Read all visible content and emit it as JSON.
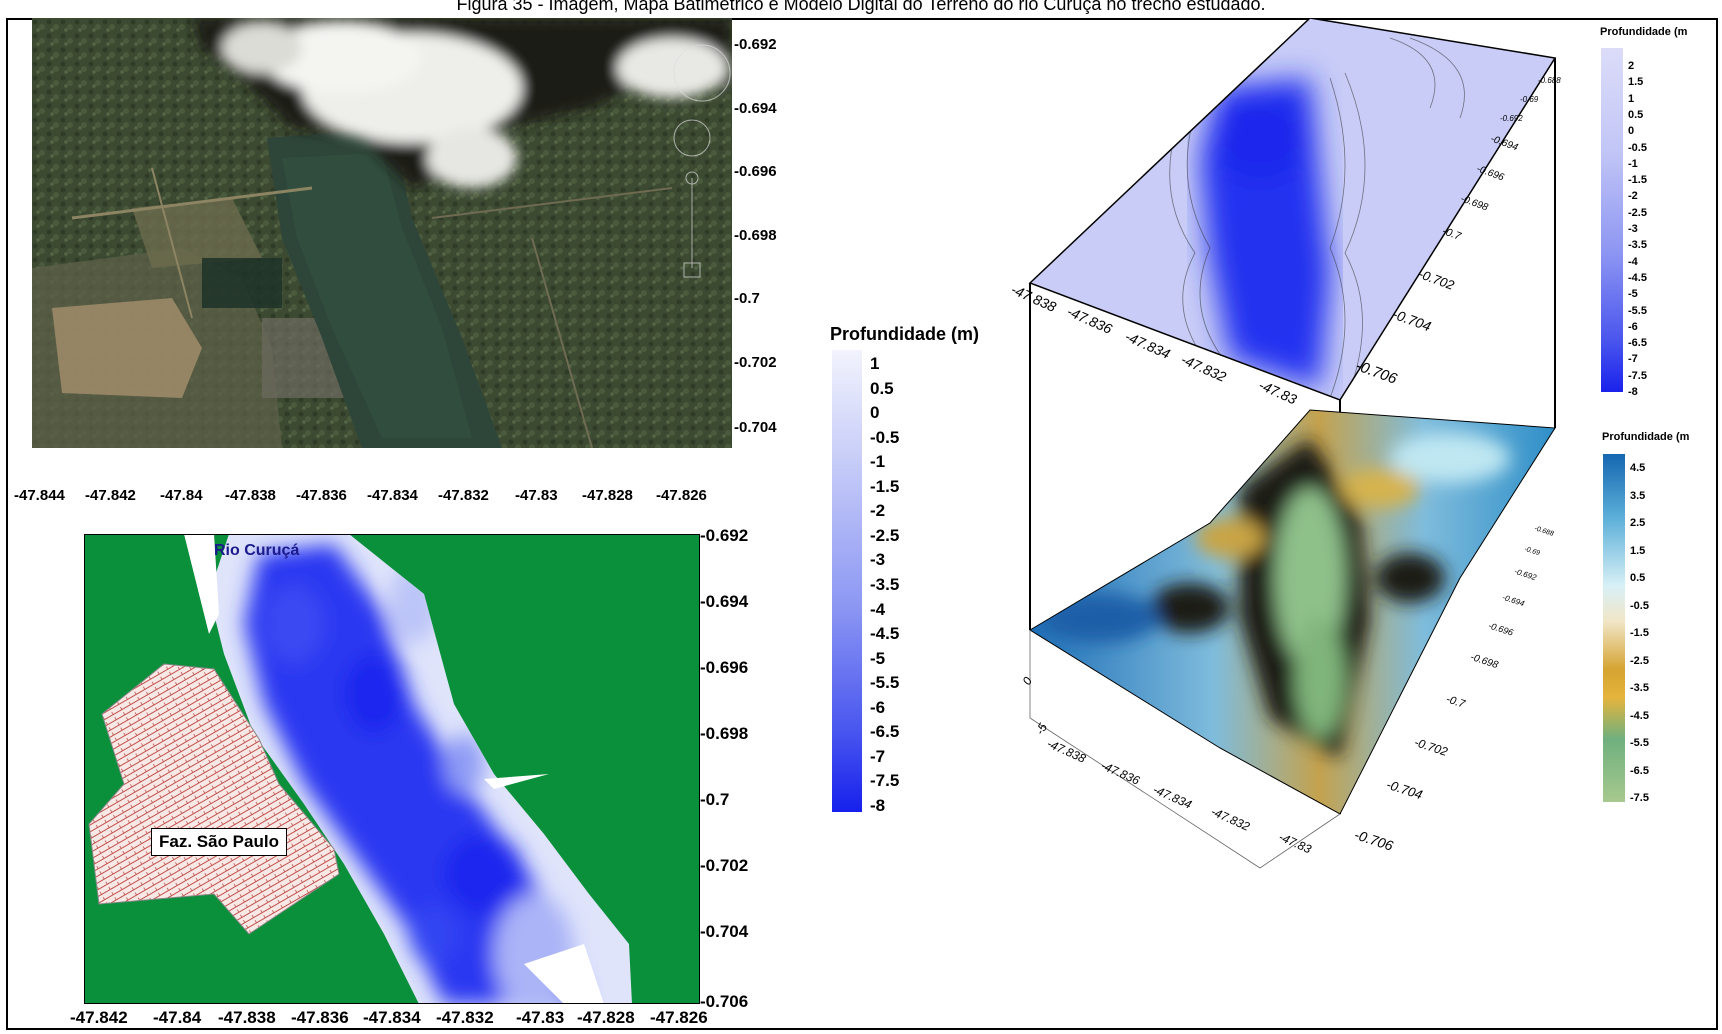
{
  "figure_caption": "Figura 35 - Imagem, Mapa Batimétrico e Modelo Digital do Terreno do rio Curuçá no trecho estudado.",
  "satellite": {
    "y_ticks": [
      "-0.692",
      "-0.694",
      "-0.696",
      "-0.698",
      "-0.7",
      "-0.702",
      "-0.704"
    ],
    "x_ticks": [
      "-47.844",
      "-47.842",
      "-47.84",
      "-47.838",
      "-47.836",
      "-47.834",
      "-47.832",
      "-47.83",
      "-47.828",
      "-47.826"
    ]
  },
  "bathymetric_map": {
    "river_label": "Rio Curuçá",
    "farm_label": "Faz. São Paulo",
    "y_ticks": [
      "-0.692",
      "-0.694",
      "-0.696",
      "-0.698",
      "-0.7",
      "-0.702",
      "-0.704",
      "-0.706"
    ],
    "x_ticks": [
      "-47.842",
      "-47.84",
      "-47.838",
      "-47.836",
      "-47.834",
      "-47.832",
      "-47.83",
      "-47.828",
      "-47.826"
    ],
    "colors": {
      "land": "#0a8f3a",
      "farm_hatch": "#c0504d",
      "farm_bg": "#f9e9e6",
      "water_deep": "#1f2cf0",
      "water_shallow": "#e8ecfb"
    }
  },
  "legend_2d": {
    "title": "Profundidade (m)",
    "labels": [
      "1",
      "0.5",
      "0",
      "-0.5",
      "-1",
      "-1.5",
      "-2",
      "-2.5",
      "-3",
      "-3.5",
      "-4",
      "-4.5",
      "-5",
      "-5.5",
      "-6",
      "-6.5",
      "-7",
      "-7.5",
      "-8"
    ]
  },
  "model_3d": {
    "top_x_ticks": [
      "-47.838",
      "-47.836",
      "-47.834",
      "-47.832",
      "-47.83"
    ],
    "top_y_ticks": [
      "-0.692",
      "-0.694",
      "-0.696",
      "-0.698",
      "-0.7",
      "-0.702",
      "-0.704",
      "-0.706"
    ],
    "top_small_ticks": [
      "-0.688",
      "-0.69",
      "-0.692"
    ],
    "bottom_x_ticks": [
      "-47.838",
      "-47.836",
      "-47.834",
      "-47.832",
      "-47.83"
    ],
    "bottom_y_ticks": [
      "-0.702",
      "-0.704",
      "-0.706"
    ],
    "bottom_small_ticks": [
      "-0.688",
      "-0.69",
      "-0.692",
      "-0.694",
      "-0.696",
      "-0.698",
      "-0.7"
    ],
    "z_ticks": [
      "0",
      "-5"
    ]
  },
  "legend_top3d": {
    "title": "Profundidade (m",
    "labels": [
      "2",
      "1.5",
      "1",
      "0.5",
      "0",
      "-0.5",
      "-1",
      "-1.5",
      "-2",
      "-2.5",
      "-3",
      "-3.5",
      "-4",
      "-4.5",
      "-5",
      "-5.5",
      "-6",
      "-6.5",
      "-7",
      "-7.5",
      "-8"
    ]
  },
  "legend_bottom3d": {
    "title": "Profundidade (m",
    "labels": [
      "4.5",
      "3.5",
      "2.5",
      "1.5",
      "0.5",
      "-0.5",
      "-1.5",
      "-2.5",
      "-3.5",
      "-4.5",
      "-5.5",
      "-6.5",
      "-7.5"
    ]
  }
}
